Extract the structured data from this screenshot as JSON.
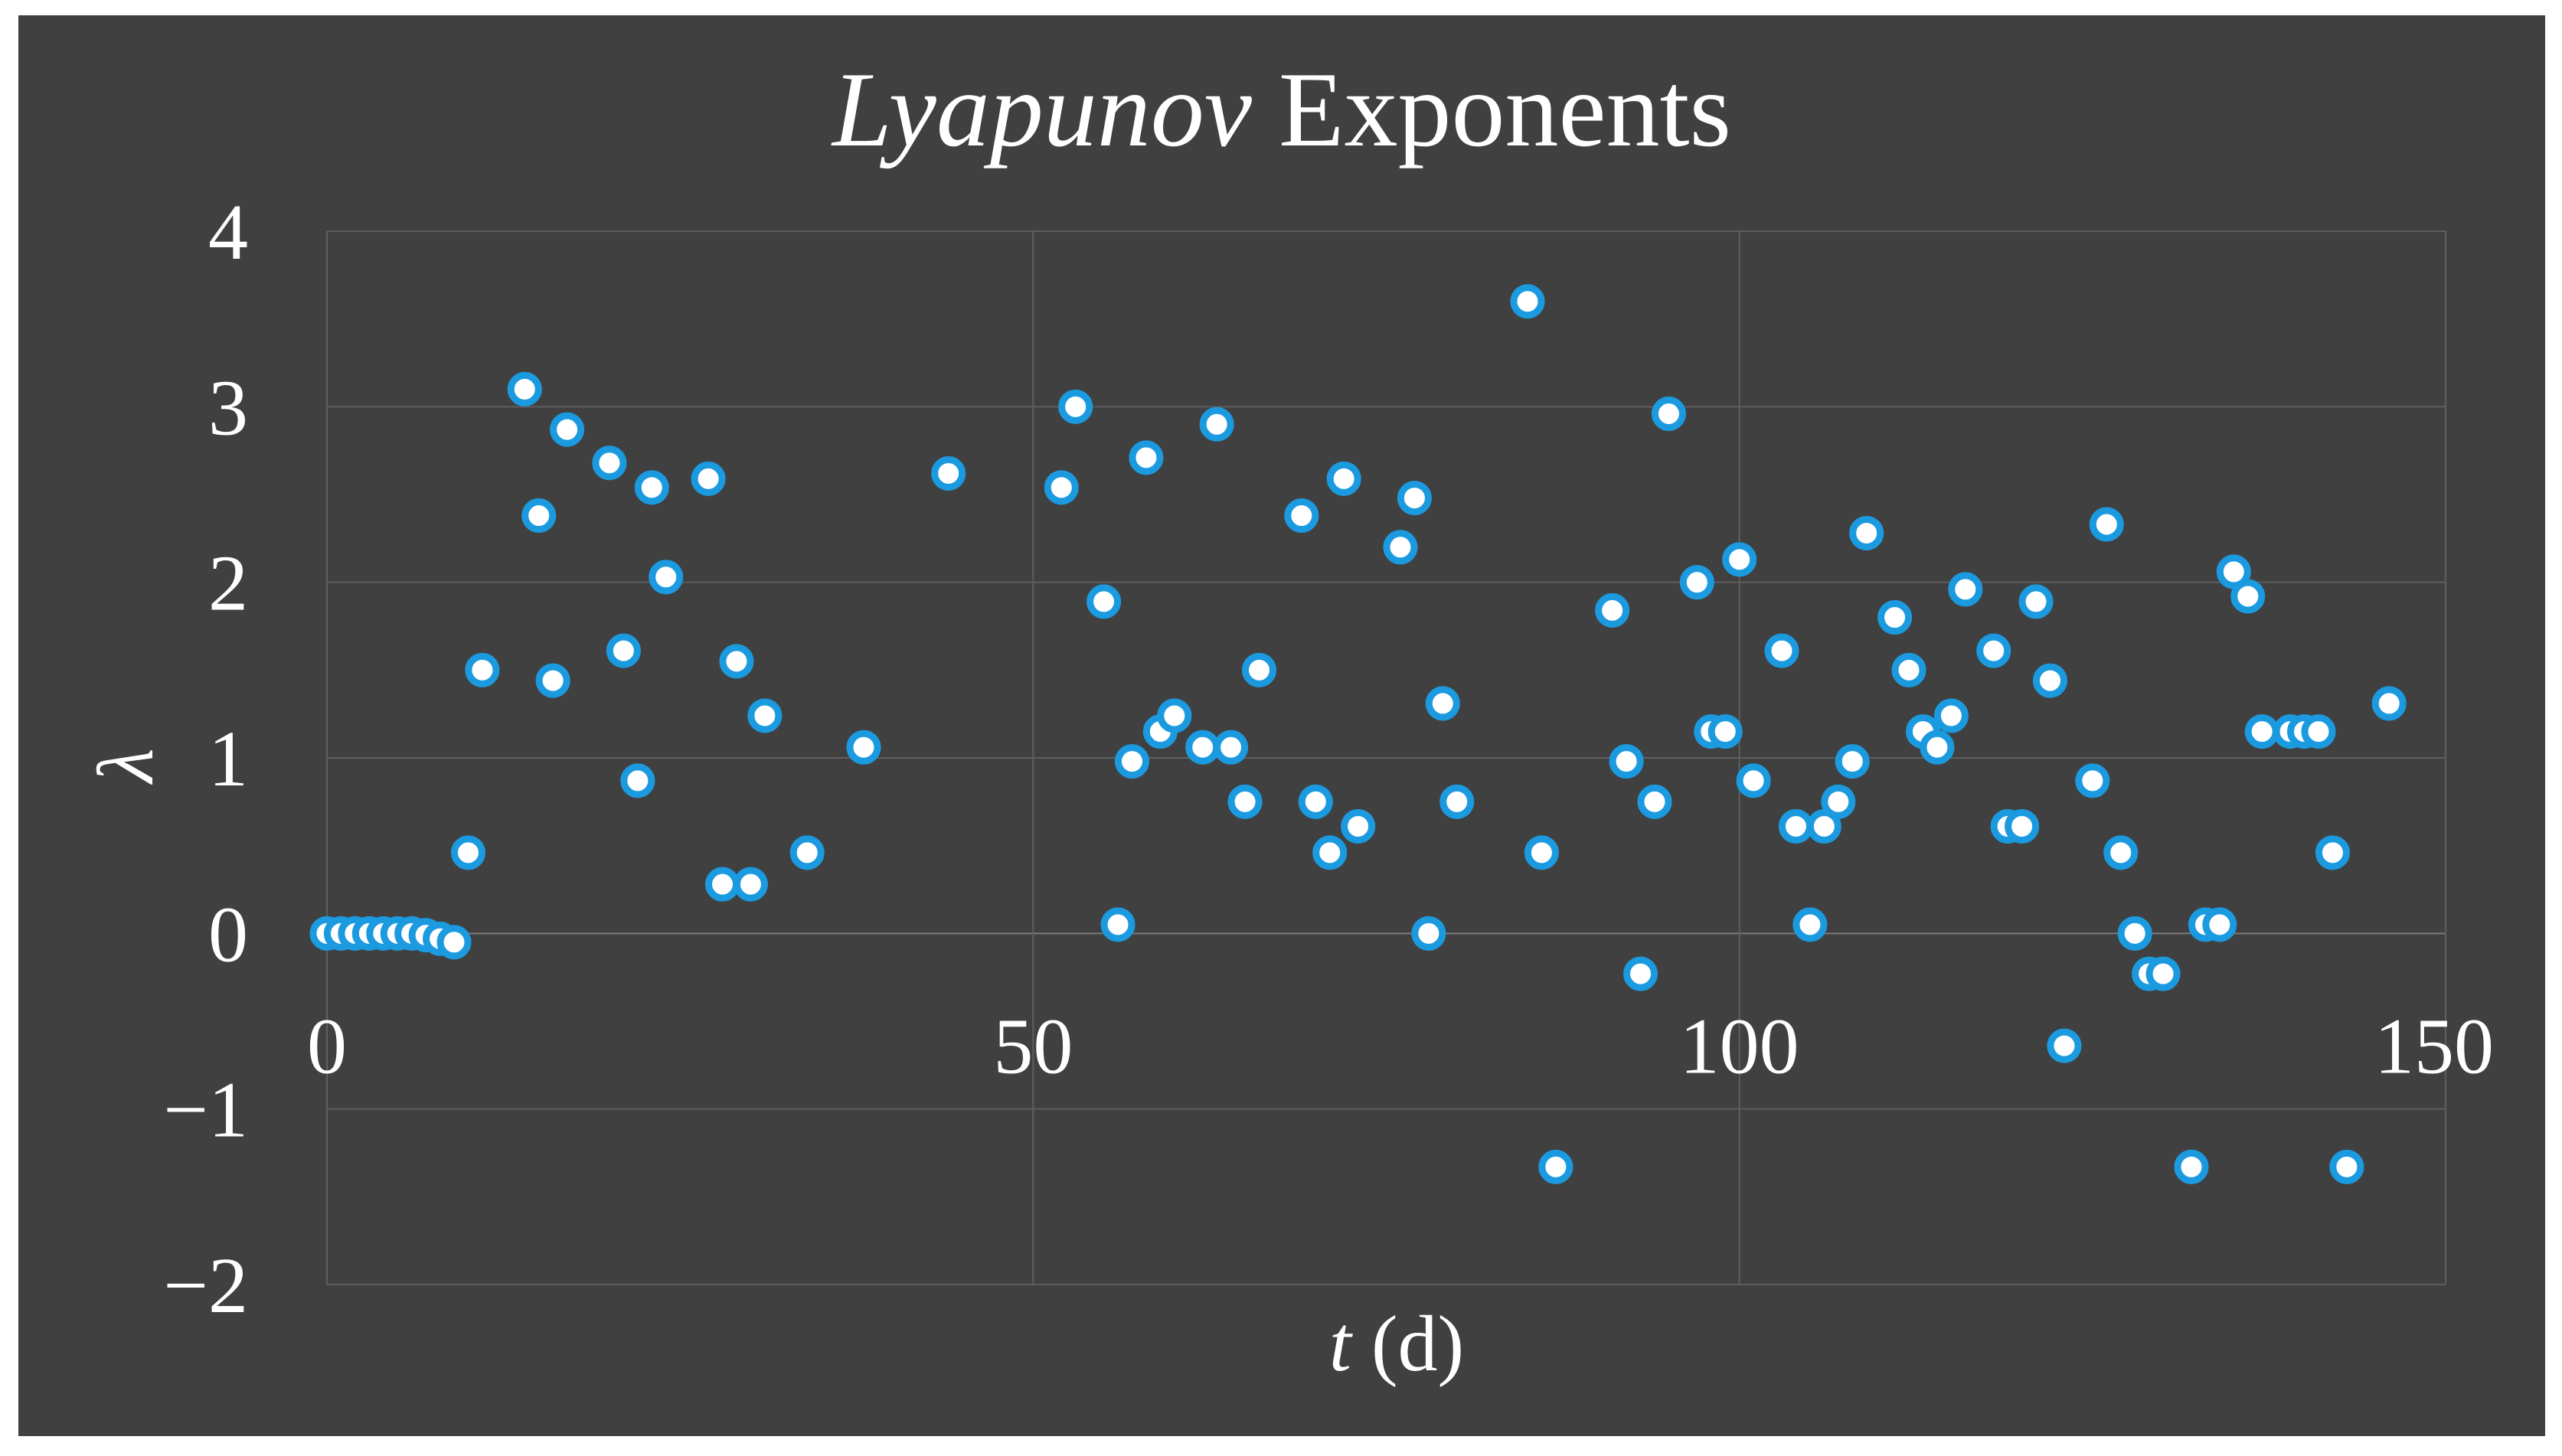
{
  "chart_data": {
    "type": "scatter",
    "title_italic": "Lyapunov",
    "title_rest": " Exponents",
    "xlabel_italic": "t",
    "xlabel_rest": " (d)",
    "ylabel": "λ",
    "xlim": [
      0,
      150
    ],
    "ylim": [
      -2,
      4
    ],
    "xticks": [
      0,
      50,
      100,
      150
    ],
    "yticks": [
      4,
      3,
      2,
      1,
      0,
      -1,
      -2
    ],
    "ytick_labels": [
      "4",
      "3",
      "2",
      "1",
      "0",
      "−1",
      "−2"
    ],
    "xtick_labels": [
      "0",
      "50",
      "100",
      "150"
    ],
    "grid": true,
    "colors": {
      "background": "#404040",
      "marker_edge": "#1b9ae0",
      "marker_fill": "#ffffff",
      "text": "#ffffff",
      "grid": "#5e5e5e"
    },
    "series": [
      {
        "points": [
          [
            0,
            0
          ],
          [
            1,
            0
          ],
          [
            2,
            0
          ],
          [
            3,
            0
          ],
          [
            4,
            0
          ],
          [
            5,
            0
          ],
          [
            6,
            0
          ],
          [
            7,
            -0.01
          ],
          [
            8,
            -0.03
          ],
          [
            9,
            -0.05
          ],
          [
            10,
            0.46
          ],
          [
            11,
            1.5
          ],
          [
            14,
            3.1
          ],
          [
            15,
            2.38
          ],
          [
            16,
            1.44
          ],
          [
            17,
            2.87
          ],
          [
            20,
            2.68
          ],
          [
            21,
            1.61
          ],
          [
            22,
            0.87
          ],
          [
            23,
            2.54
          ],
          [
            24,
            2.03
          ],
          [
            27,
            2.59
          ],
          [
            28,
            0.28
          ],
          [
            29,
            1.55
          ],
          [
            30,
            0.28
          ],
          [
            31,
            1.24
          ],
          [
            34,
            0.46
          ],
          [
            38,
            1.06
          ],
          [
            44,
            2.62
          ],
          [
            52,
            2.54
          ],
          [
            53,
            3.0
          ],
          [
            55,
            1.89
          ],
          [
            56,
            0.05
          ],
          [
            57,
            0.98
          ],
          [
            58,
            2.71
          ],
          [
            59,
            1.15
          ],
          [
            60,
            1.24
          ],
          [
            62,
            1.06
          ],
          [
            63,
            2.9
          ],
          [
            64,
            1.06
          ],
          [
            65,
            0.75
          ],
          [
            66,
            1.5
          ],
          [
            69,
            2.38
          ],
          [
            70,
            0.75
          ],
          [
            71,
            0.46
          ],
          [
            72,
            2.59
          ],
          [
            73,
            0.61
          ],
          [
            76,
            2.2
          ],
          [
            77,
            2.48
          ],
          [
            78,
            0.0
          ],
          [
            79,
            1.31
          ],
          [
            80,
            0.75
          ],
          [
            85,
            3.6
          ],
          [
            86,
            0.46
          ],
          [
            87,
            -1.33
          ],
          [
            91,
            1.84
          ],
          [
            92,
            0.98
          ],
          [
            93,
            -0.23
          ],
          [
            94,
            0.75
          ],
          [
            95,
            2.96
          ],
          [
            97,
            2.0
          ],
          [
            98,
            1.15
          ],
          [
            99,
            1.15
          ],
          [
            100,
            2.13
          ],
          [
            101,
            0.87
          ],
          [
            103,
            1.61
          ],
          [
            104,
            0.61
          ],
          [
            105,
            0.05
          ],
          [
            106,
            0.61
          ],
          [
            107,
            0.75
          ],
          [
            108,
            0.98
          ],
          [
            109,
            2.28
          ],
          [
            111,
            1.8
          ],
          [
            112,
            1.5
          ],
          [
            113,
            1.15
          ],
          [
            114,
            1.06
          ],
          [
            115,
            1.24
          ],
          [
            116,
            1.96
          ],
          [
            118,
            1.61
          ],
          [
            119,
            0.61
          ],
          [
            120,
            0.61
          ],
          [
            121,
            1.89
          ],
          [
            122,
            1.44
          ],
          [
            123,
            -0.64
          ],
          [
            125,
            0.87
          ],
          [
            126,
            2.33
          ],
          [
            127,
            0.46
          ],
          [
            128,
            0.0
          ],
          [
            129,
            -0.23
          ],
          [
            130,
            -0.23
          ],
          [
            132,
            -1.33
          ],
          [
            133,
            0.05
          ],
          [
            134,
            0.05
          ],
          [
            135,
            2.06
          ],
          [
            136,
            1.92
          ],
          [
            137,
            1.15
          ],
          [
            139,
            1.15
          ],
          [
            140,
            1.15
          ],
          [
            141,
            1.15
          ],
          [
            142,
            0.46
          ],
          [
            143,
            -1.33
          ],
          [
            146,
            1.31
          ]
        ]
      }
    ]
  }
}
